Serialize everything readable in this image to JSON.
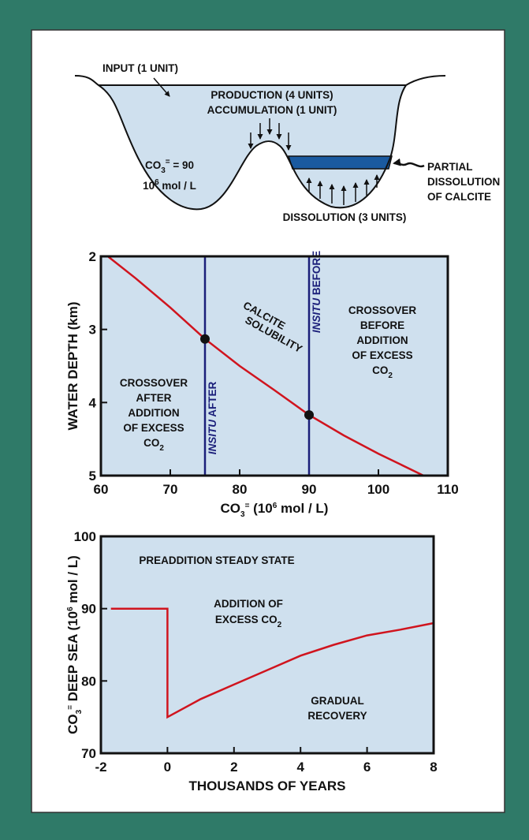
{
  "diagram": {
    "input": "INPUT (1 UNIT)",
    "production": "PRODUCTION (4 UNITS)",
    "accumulation": "ACCUMULATION (1 UNIT)",
    "concentration": [
      {
        "text": "CO"
      },
      {
        "text": "3",
        "pos": "sub"
      },
      {
        "text": "=",
        "pos": "sup"
      },
      {
        "text": " = 90"
      }
    ],
    "concentration_units": [
      {
        "text": "10"
      },
      {
        "text": "6",
        "pos": "sup"
      },
      {
        "text": " mol / L"
      }
    ],
    "partial": [
      "PARTIAL",
      "DISSOLUTION",
      "OF CALCITE"
    ],
    "dissolution": "DISSOLUTION (3 UNITS)"
  },
  "chart_data": [
    {
      "type": "line",
      "xlabel": [
        {
          "text": "CO"
        },
        {
          "text": "3",
          "pos": "sub"
        },
        {
          "text": "=",
          "pos": "sup"
        },
        {
          "text": " (10"
        },
        {
          "text": "6",
          "pos": "sup"
        },
        {
          "text": " mol / L)"
        }
      ],
      "ylabel": "WATER DEPTH (km)",
      "xlim": [
        60,
        110
      ],
      "ylim": [
        2,
        5
      ],
      "y_inverted": true,
      "xticks": [
        60,
        70,
        80,
        90,
        100,
        110
      ],
      "yticks": [
        2,
        3,
        4,
        5
      ],
      "series": [
        {
          "color": "#d0141e",
          "x": [
            61,
            65,
            70,
            75,
            80,
            85,
            90,
            95,
            100,
            106.5
          ],
          "y": [
            2,
            2.3,
            2.7,
            3.13,
            3.5,
            3.83,
            4.17,
            4.45,
            4.7,
            5
          ]
        }
      ],
      "reference_lines": [
        {
          "x": 75,
          "color": "#1b1f7a",
          "label": [
            {
              "text": "INSITU",
              "style": "italic"
            },
            {
              "text": " AFTER"
            }
          ]
        },
        {
          "x": 90,
          "color": "#1b1f7a",
          "label": [
            {
              "text": "INSITU",
              "style": "italic"
            },
            {
              "text": " BEFORE"
            }
          ]
        }
      ],
      "points": [
        {
          "x": 75,
          "y": 3.13
        },
        {
          "x": 90,
          "y": 4.17
        }
      ],
      "annotations": [
        {
          "color": "#d0141e",
          "lines": [
            "CALCITE",
            "SOLUBILITY"
          ]
        },
        {
          "lines": [
            "CROSSOVER",
            "AFTER",
            "ADDITION",
            "OF EXCESS",
            [
              {
                "text": "CO"
              },
              {
                "text": "2",
                "pos": "sub"
              }
            ]
          ]
        },
        {
          "lines": [
            "CROSSOVER",
            "BEFORE",
            "ADDITION",
            "OF EXCESS",
            [
              {
                "text": "CO"
              },
              {
                "text": "2",
                "pos": "sub"
              }
            ]
          ]
        }
      ]
    },
    {
      "type": "line",
      "xlabel": "THOUSANDS OF YEARS",
      "ylabel": [
        {
          "text": "CO"
        },
        {
          "text": "3",
          "pos": "sub"
        },
        {
          "text": "=",
          "pos": "sup"
        },
        {
          "text": " DEEP SEA (10"
        },
        {
          "text": "6",
          "pos": "sup"
        },
        {
          "text": " mol / L)"
        }
      ],
      "xlim": [
        -2,
        8
      ],
      "ylim": [
        70,
        100
      ],
      "xticks": [
        -2,
        0,
        2,
        4,
        6,
        8
      ],
      "yticks": [
        70,
        80,
        90,
        100
      ],
      "series": [
        {
          "color": "#d0141e",
          "x": [
            -1.7,
            0,
            0,
            1,
            2,
            3,
            4,
            5,
            6,
            7,
            8
          ],
          "y": [
            90,
            90,
            75,
            77.5,
            79.5,
            81.5,
            83.5,
            85,
            86.3,
            87.1,
            88
          ]
        }
      ],
      "annotations": [
        {
          "lines": [
            "PREADDITION STEADY STATE"
          ]
        },
        {
          "lines": [
            "ADDITION OF",
            [
              {
                "text": "EXCESS CO"
              },
              {
                "text": "2",
                "pos": "sub"
              }
            ]
          ]
        },
        {
          "lines": [
            "GRADUAL",
            "RECOVERY"
          ]
        }
      ]
    }
  ]
}
